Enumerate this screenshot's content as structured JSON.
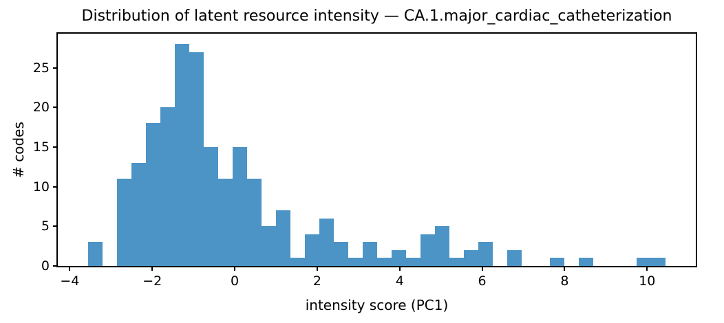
{
  "chart_data": {
    "type": "bar",
    "variant": "histogram",
    "title": "Distribution of latent resource intensity — CA.1.major_cardiac_catheterization",
    "xlabel": "intensity score (PC1)",
    "ylabel": "# codes",
    "bin_start": -3.55,
    "bin_width": 0.35,
    "bin_counts": [
      3,
      0,
      11,
      13,
      18,
      20,
      28,
      27,
      15,
      11,
      15,
      11,
      5,
      7,
      1,
      4,
      6,
      3,
      1,
      3,
      1,
      2,
      1,
      4,
      5,
      1,
      2,
      3,
      0,
      2,
      0,
      0,
      1,
      0,
      1,
      0,
      0,
      0,
      1,
      1
    ],
    "xlim": [
      -4.29,
      11.18
    ],
    "ylim": [
      0,
      29.3
    ],
    "x_ticks": [
      {
        "value": -4,
        "label": "−4"
      },
      {
        "value": -2,
        "label": "−2"
      },
      {
        "value": 0,
        "label": "0"
      },
      {
        "value": 2,
        "label": "2"
      },
      {
        "value": 4,
        "label": "4"
      },
      {
        "value": 6,
        "label": "6"
      },
      {
        "value": 8,
        "label": "8"
      },
      {
        "value": 10,
        "label": "10"
      }
    ],
    "y_ticks": [
      {
        "value": 0,
        "label": "0"
      },
      {
        "value": 5,
        "label": "5"
      },
      {
        "value": 10,
        "label": "10"
      },
      {
        "value": 15,
        "label": "15"
      },
      {
        "value": 20,
        "label": "20"
      },
      {
        "value": 25,
        "label": "25"
      }
    ],
    "bar_color": "#4d94c6",
    "axis_color": "#000000",
    "background_color": "#ffffff",
    "grid": false,
    "legend": null
  }
}
